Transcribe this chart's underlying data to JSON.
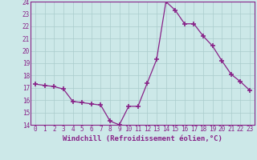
{
  "x": [
    0,
    1,
    2,
    3,
    4,
    5,
    6,
    7,
    8,
    9,
    10,
    11,
    12,
    13,
    14,
    15,
    16,
    17,
    18,
    19,
    20,
    21,
    22,
    23
  ],
  "y": [
    17.3,
    17.2,
    17.1,
    16.9,
    15.9,
    15.8,
    15.7,
    15.6,
    14.3,
    14.0,
    15.5,
    15.5,
    17.4,
    19.3,
    24.0,
    23.3,
    22.2,
    22.2,
    21.2,
    20.4,
    19.2,
    18.1,
    17.5,
    16.8
  ],
  "line_color": "#882288",
  "marker": "+",
  "marker_size": 4,
  "bg_color": "#cce8e8",
  "grid_color": "#aacccc",
  "xlabel": "Windchill (Refroidissement éolien,°C)",
  "ylim": [
    14,
    24
  ],
  "yticks": [
    14,
    15,
    16,
    17,
    18,
    19,
    20,
    21,
    22,
    23,
    24
  ],
  "xticks": [
    0,
    1,
    2,
    3,
    4,
    5,
    6,
    7,
    8,
    9,
    10,
    11,
    12,
    13,
    14,
    15,
    16,
    17,
    18,
    19,
    20,
    21,
    22,
    23
  ],
  "tick_color": "#882288",
  "label_color": "#882288",
  "axis_color": "#882288",
  "spine_color": "#882288"
}
